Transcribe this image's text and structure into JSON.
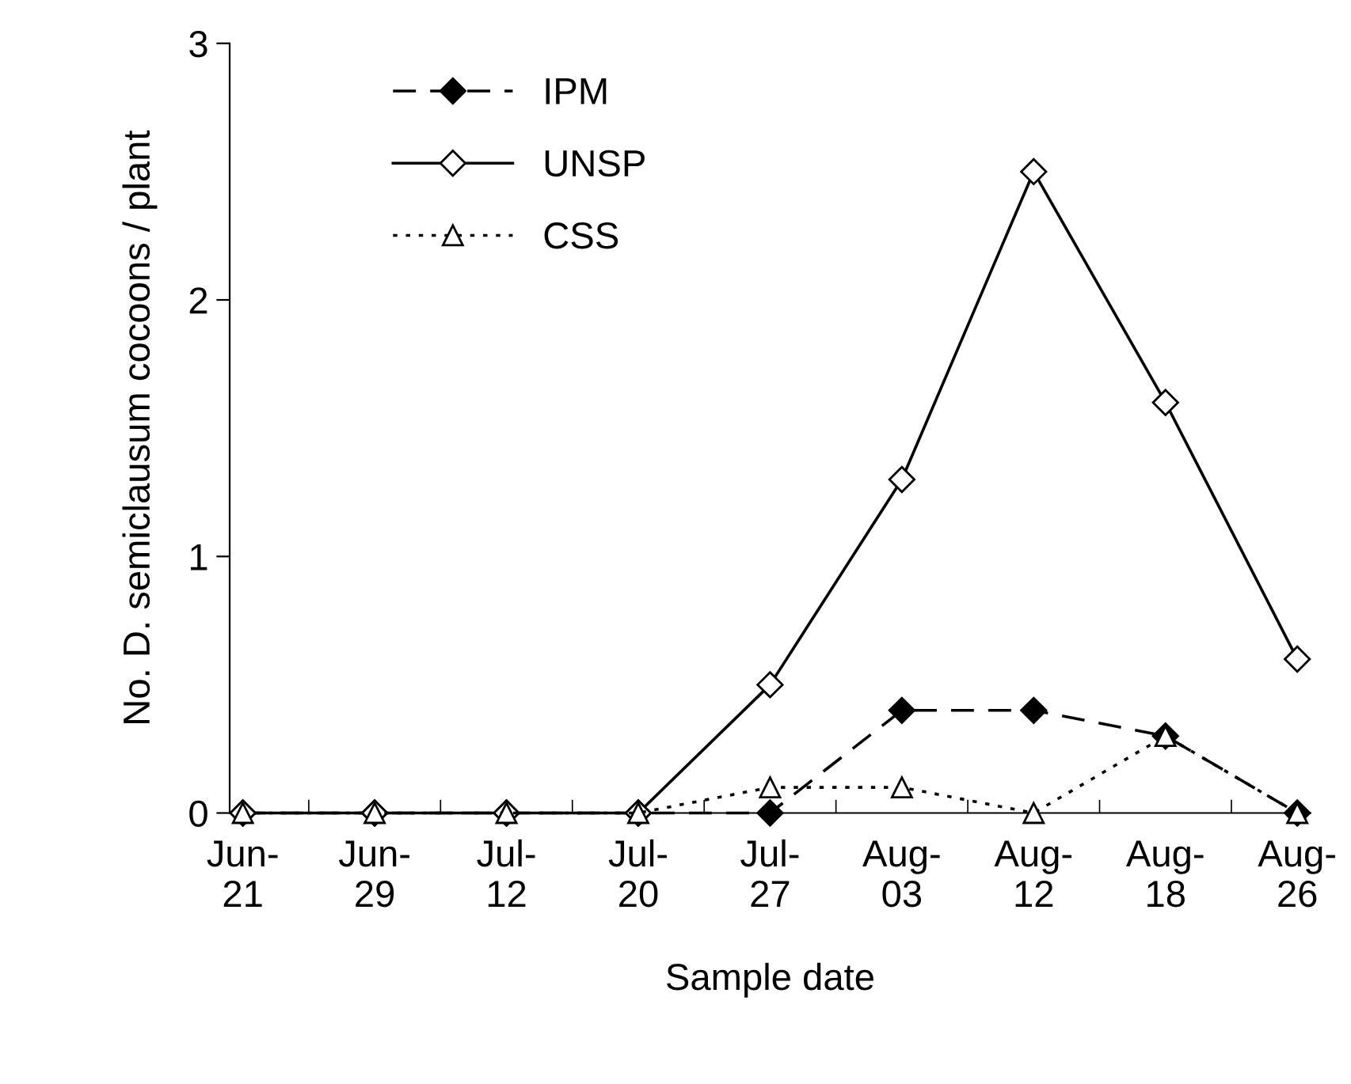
{
  "chart_data": {
    "type": "line",
    "xlabel": "Sample date",
    "ylabel": "No. D. semiclausum cocoons / plant",
    "categories": [
      "Jun-\n21",
      "Jun-\n29",
      "Jul-\n12",
      "Jul-\n20",
      "Jul-\n27",
      "Aug-\n03",
      "Aug-\n12",
      "Aug-\n18",
      "Aug-\n26"
    ],
    "series": [
      {
        "name": "IPM",
        "color": "#000000",
        "marker": "diamond",
        "line_style": "dashed",
        "values": [
          0,
          0,
          0,
          0,
          0,
          0.4,
          0.4,
          0.3,
          0
        ]
      },
      {
        "name": "UNSP",
        "color": "#000000",
        "marker": "diamond",
        "line_style": "solid",
        "values": [
          0,
          0,
          0,
          0,
          0.5,
          1.3,
          2.5,
          1.6,
          0.6
        ]
      },
      {
        "name": "CSS",
        "color": "#000000",
        "marker": "triangle",
        "line_style": "dotted",
        "values": [
          0,
          0,
          0,
          0,
          0.1,
          0.1,
          0,
          0.3,
          0
        ]
      }
    ],
    "ylim": [
      0,
      3
    ],
    "yticks": [
      0,
      1,
      2,
      3
    ],
    "grid": false,
    "legend": "top left"
  }
}
